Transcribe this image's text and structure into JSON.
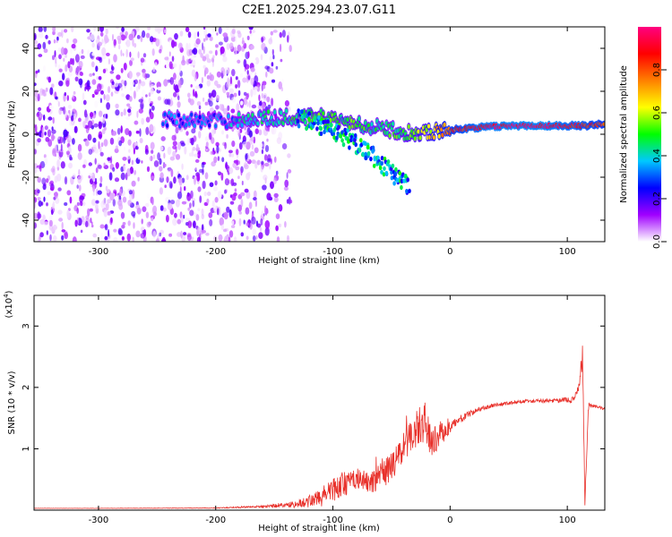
{
  "title": "C2E1.2025.294.23.07.G11",
  "chart_data": [
    {
      "type": "heatmap",
      "xlabel": "Height of straight line (km)",
      "ylabel": "Frequency (Hz)",
      "xlim": [
        -355,
        132
      ],
      "ylim": [
        -50,
        50
      ],
      "xticks": [
        -300,
        -200,
        -100,
        0,
        100
      ],
      "xtick_labels": [
        "-300",
        "-200",
        "-100",
        "0",
        "100"
      ],
      "yticks": [
        -40,
        -20,
        0,
        20,
        40
      ],
      "ytick_labels": [
        "-40",
        "-20",
        "0",
        "20",
        "40"
      ],
      "colorbar": {
        "label": "Normalized spectral amplitude",
        "range": [
          0,
          1
        ],
        "ticks": [
          0,
          0.2,
          0.4,
          0.6,
          0.8
        ],
        "tick_labels": [
          "0.0",
          "0.2",
          "0.4",
          "0.6",
          "0.8"
        ],
        "colors": [
          "#ffffff",
          "#a000ff",
          "#0000ff",
          "#00c8ff",
          "#00ff00",
          "#ffff00",
          "#ff8000",
          "#ff0000",
          "#ff0080"
        ]
      },
      "features": [
        {
          "name": "noise",
          "x_range": [
            -355,
            -135
          ],
          "y_range": [
            -50,
            50
          ],
          "amplitude": 0.15
        },
        {
          "name": "carrier",
          "points": [
            [
              -245,
              7
            ],
            [
              -200,
              6
            ],
            [
              -175,
              7
            ],
            [
              -140,
              8
            ],
            [
              -110,
              8
            ],
            [
              -80,
              5
            ],
            [
              -60,
              3
            ],
            [
              -40,
              1
            ],
            [
              -20,
              1
            ],
            [
              0,
              2
            ],
            [
              20,
              3
            ],
            [
              50,
              4
            ],
            [
              80,
              4
            ],
            [
              100,
              4
            ],
            [
              120,
              4
            ],
            [
              132,
              5
            ]
          ],
          "amplitude": [
            0.3,
            0.3,
            0.4,
            0.45,
            0.5,
            0.5,
            0.45,
            0.5,
            0.6,
            0.8,
            0.9,
            0.95,
            0.95,
            0.9,
            0.85,
            0.8
          ]
        },
        {
          "name": "secondary-trace",
          "points": [
            [
              -130,
              8
            ],
            [
              -100,
              2
            ],
            [
              -70,
              -8
            ],
            [
              -50,
              -18
            ],
            [
              -35,
              -25
            ]
          ],
          "amplitude": 0.35
        }
      ]
    },
    {
      "type": "line",
      "xlabel": "Height of straight line (km)",
      "ylabel": "SNR (10 * v/v)",
      "y_multiplier": "(x10^4)",
      "y_multiplier_base": "(x10",
      "y_multiplier_exp": "4",
      "y_multiplier_close": ")",
      "xlim": [
        -355,
        132
      ],
      "ylim": [
        0,
        35000
      ],
      "xticks": [
        -300,
        -200,
        -100,
        0,
        100
      ],
      "xtick_labels": [
        "-300",
        "-200",
        "-100",
        "0",
        "100"
      ],
      "yticks": [
        10000,
        20000,
        30000
      ],
      "ytick_labels": [
        "1",
        "2",
        "3"
      ],
      "series": [
        {
          "color": "#e8302a",
          "x": [
            -355,
            -300,
            -250,
            -200,
            -160,
            -130,
            -110,
            -95,
            -80,
            -65,
            -50,
            -40,
            -30,
            -22,
            -15,
            -8,
            0,
            10,
            25,
            40,
            60,
            80,
            95,
            105,
            110,
            113,
            115,
            118,
            122,
            132
          ],
          "y": [
            300,
            300,
            320,
            350,
            600,
            1000,
            2000,
            4000,
            5000,
            4500,
            7000,
            10000,
            13000,
            14500,
            11000,
            12500,
            13500,
            15000,
            16500,
            17200,
            17700,
            17800,
            17900,
            18000,
            20000,
            26000,
            800,
            17000,
            17000,
            16500
          ],
          "noise": [
            20,
            20,
            30,
            50,
            200,
            600,
            1500,
            2200,
            1500,
            2000,
            2500,
            2500,
            3000,
            3500,
            2500,
            2000,
            1000,
            600,
            400,
            300,
            300,
            300,
            400,
            500,
            1200,
            2500,
            500,
            700,
            300,
            300
          ]
        }
      ]
    }
  ]
}
